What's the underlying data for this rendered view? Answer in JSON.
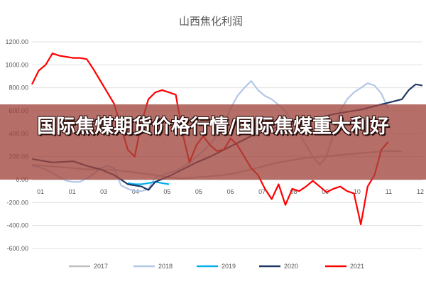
{
  "headline": "国际焦煤期货价格行情/国际焦煤重大利好",
  "chart_data": {
    "type": "line",
    "title": "山西焦化利润",
    "ylim": [
      -600,
      1200
    ],
    "yticks": [
      "1200.00",
      "1000.00",
      "800.00",
      "600.00",
      "400.00",
      "200.00",
      "0.00",
      "-200.00",
      "-400.00",
      "-600.00"
    ],
    "xticks": [
      "01",
      "01",
      "03",
      "04",
      "05",
      "05",
      "06",
      "07",
      "08",
      "09",
      "10",
      "11",
      "12"
    ],
    "series": [
      {
        "name": "2017",
        "color": "#bfbfbf",
        "values": [
          [
            0,
            130
          ],
          [
            2,
            120
          ],
          [
            4,
            110
          ],
          [
            6,
            100
          ],
          [
            8,
            90
          ],
          [
            10,
            90
          ],
          [
            12,
            85
          ],
          [
            14,
            70
          ],
          [
            16,
            55
          ],
          [
            18,
            40
          ],
          [
            20,
            20
          ],
          [
            22,
            10
          ],
          [
            24,
            20
          ],
          [
            26,
            30
          ],
          [
            28,
            40
          ],
          [
            30,
            60
          ],
          [
            32,
            90
          ],
          [
            34,
            120
          ],
          [
            36,
            150
          ],
          [
            38,
            170
          ],
          [
            40,
            190
          ],
          [
            42,
            200
          ],
          [
            44,
            210
          ],
          [
            46,
            220
          ],
          [
            48,
            230
          ],
          [
            50,
            240
          ],
          [
            52,
            250
          ],
          [
            54,
            245
          ]
        ]
      },
      {
        "name": "2018",
        "color": "#b4c7e7",
        "values": [
          [
            0,
            120
          ],
          [
            1,
            110
          ],
          [
            2,
            90
          ],
          [
            3,
            60
          ],
          [
            4,
            20
          ],
          [
            5,
            -10
          ],
          [
            6,
            -20
          ],
          [
            7,
            -20
          ],
          [
            8,
            10
          ],
          [
            9,
            50
          ],
          [
            10,
            100
          ],
          [
            11,
            120
          ],
          [
            12,
            100
          ],
          [
            13,
            -50
          ],
          [
            14,
            -80
          ],
          [
            15,
            -100
          ],
          [
            16,
            -100
          ],
          [
            17,
            -80
          ],
          [
            18,
            20
          ],
          [
            19,
            40
          ],
          [
            20,
            60
          ],
          [
            21,
            80
          ],
          [
            22,
            110
          ],
          [
            23,
            150
          ],
          [
            24,
            200
          ],
          [
            25,
            250
          ],
          [
            26,
            310
          ],
          [
            27,
            380
          ],
          [
            28,
            480
          ],
          [
            29,
            620
          ],
          [
            30,
            730
          ],
          [
            31,
            800
          ],
          [
            32,
            860
          ],
          [
            33,
            780
          ],
          [
            34,
            730
          ],
          [
            35,
            700
          ],
          [
            36,
            650
          ],
          [
            37,
            600
          ],
          [
            38,
            500
          ],
          [
            39,
            400
          ],
          [
            40,
            300
          ],
          [
            41,
            200
          ],
          [
            42,
            130
          ],
          [
            43,
            200
          ],
          [
            44,
            400
          ],
          [
            45,
            600
          ],
          [
            46,
            700
          ],
          [
            47,
            760
          ],
          [
            48,
            800
          ],
          [
            49,
            840
          ],
          [
            50,
            820
          ],
          [
            51,
            750
          ],
          [
            52,
            620
          ]
        ]
      },
      {
        "name": "2019",
        "color": "#00b0f0",
        "values": [
          [
            14,
            -30
          ],
          [
            15,
            -40
          ],
          [
            16,
            -40
          ],
          [
            17,
            -30
          ],
          [
            18,
            -20
          ],
          [
            19,
            -30
          ],
          [
            20,
            -40
          ]
        ]
      },
      {
        "name": "2020",
        "color": "#1f3864",
        "values": [
          [
            0,
            180
          ],
          [
            3,
            150
          ],
          [
            6,
            160
          ],
          [
            8,
            120
          ],
          [
            10,
            90
          ],
          [
            12,
            40
          ],
          [
            14,
            -40
          ],
          [
            16,
            -60
          ],
          [
            17,
            -90
          ],
          [
            18,
            -20
          ],
          [
            20,
            30
          ],
          [
            22,
            90
          ],
          [
            24,
            150
          ],
          [
            26,
            200
          ],
          [
            28,
            260
          ],
          [
            30,
            320
          ],
          [
            32,
            380
          ],
          [
            34,
            420
          ],
          [
            36,
            460
          ],
          [
            38,
            500
          ],
          [
            40,
            520
          ],
          [
            42,
            540
          ],
          [
            44,
            570
          ],
          [
            46,
            590
          ],
          [
            48,
            610
          ],
          [
            50,
            640
          ],
          [
            52,
            670
          ],
          [
            54,
            700
          ],
          [
            55,
            780
          ],
          [
            56,
            830
          ],
          [
            57,
            820
          ]
        ]
      },
      {
        "name": "2021",
        "color": "#ff0000",
        "values": [
          [
            0,
            830
          ],
          [
            1,
            950
          ],
          [
            2,
            1000
          ],
          [
            3,
            1100
          ],
          [
            4,
            1080
          ],
          [
            5,
            1070
          ],
          [
            6,
            1060
          ],
          [
            7,
            1060
          ],
          [
            8,
            1050
          ],
          [
            9,
            960
          ],
          [
            10,
            860
          ],
          [
            11,
            760
          ],
          [
            12,
            660
          ],
          [
            13,
            460
          ],
          [
            14,
            260
          ],
          [
            15,
            200
          ],
          [
            16,
            500
          ],
          [
            17,
            700
          ],
          [
            18,
            760
          ],
          [
            19,
            780
          ],
          [
            20,
            760
          ],
          [
            21,
            740
          ],
          [
            22,
            400
          ],
          [
            23,
            150
          ],
          [
            24,
            300
          ],
          [
            25,
            380
          ],
          [
            26,
            300
          ],
          [
            27,
            250
          ],
          [
            28,
            260
          ],
          [
            29,
            360
          ],
          [
            30,
            300
          ],
          [
            31,
            200
          ],
          [
            32,
            100
          ],
          [
            33,
            40
          ],
          [
            34,
            -80
          ],
          [
            35,
            -170
          ],
          [
            36,
            -40
          ],
          [
            37,
            -220
          ],
          [
            38,
            -80
          ],
          [
            39,
            -100
          ],
          [
            40,
            -60
          ],
          [
            41,
            -10
          ],
          [
            42,
            -60
          ],
          [
            43,
            -110
          ],
          [
            44,
            -80
          ],
          [
            45,
            -60
          ],
          [
            46,
            -100
          ],
          [
            47,
            -120
          ],
          [
            48,
            -390
          ],
          [
            49,
            -60
          ],
          [
            50,
            40
          ],
          [
            51,
            260
          ],
          [
            52,
            330
          ]
        ]
      }
    ],
    "legend": [
      "2017",
      "2018",
      "2019",
      "2020",
      "2021"
    ]
  }
}
